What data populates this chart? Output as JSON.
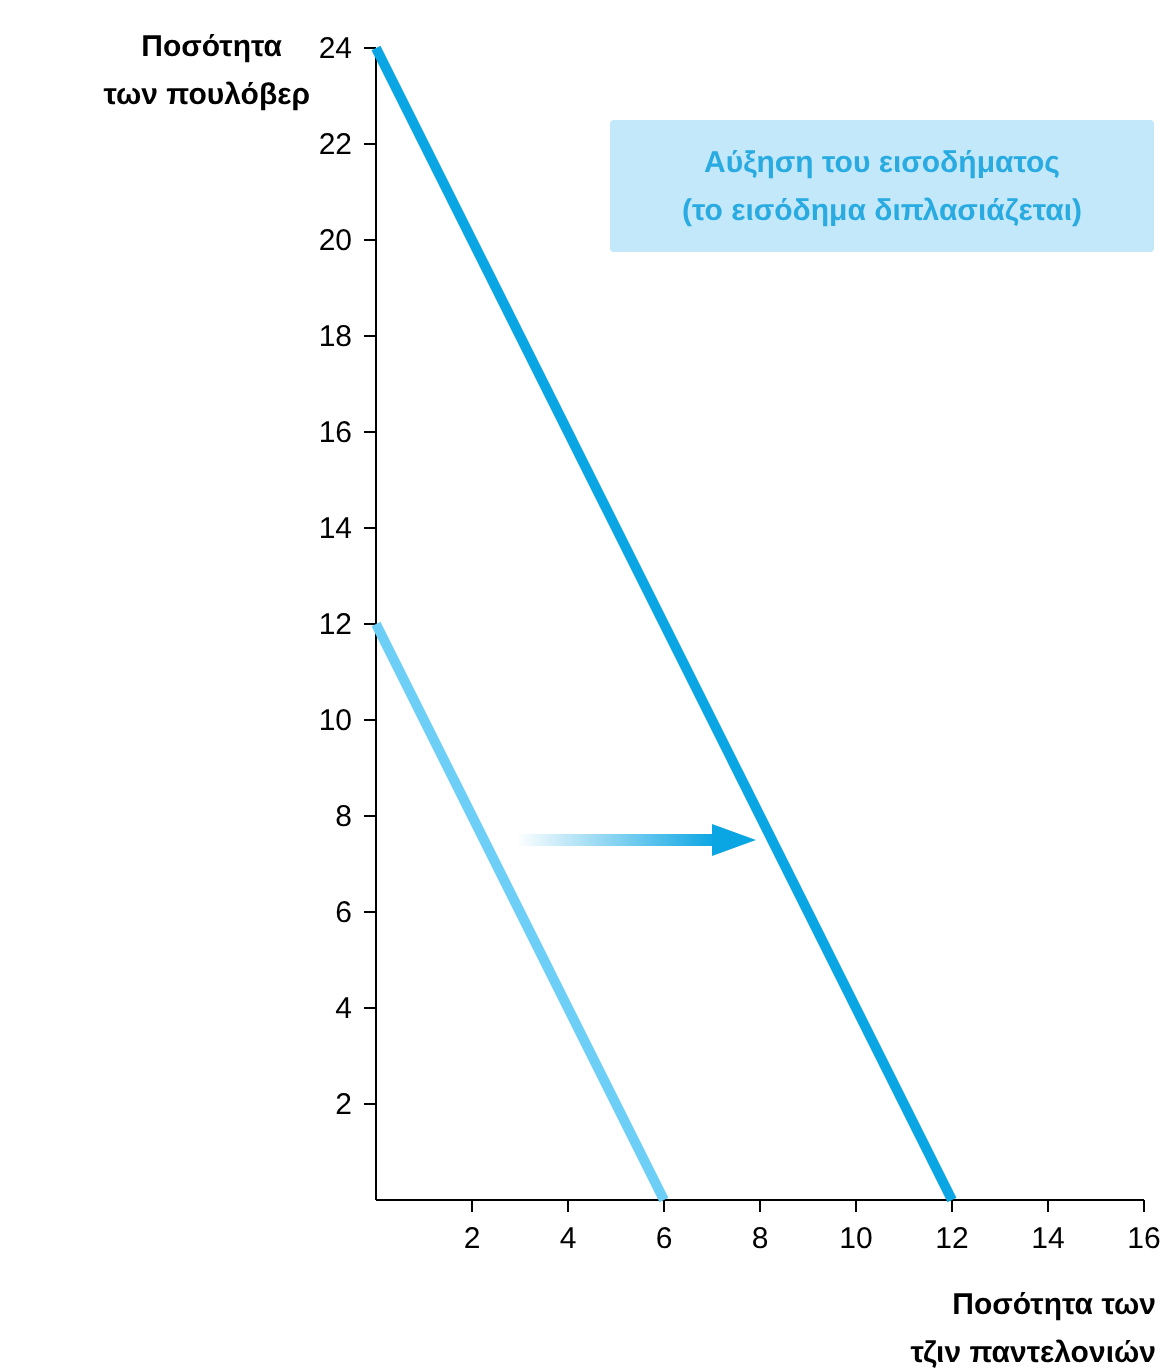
{
  "chart_data": {
    "type": "line",
    "xlabel": "Ποσότητα των\nτζιν παντελονιών",
    "ylabel": "Ποσότητα\nτων πουλόβερ",
    "series": [
      {
        "color": "#6dcff6",
        "x": [
          0,
          6
        ],
        "values": [
          12,
          0
        ]
      },
      {
        "color": "#0aa5e3",
        "x": [
          0,
          12
        ],
        "values": [
          24,
          0
        ]
      }
    ],
    "xlim": [
      0,
      16
    ],
    "xticks": [
      2,
      4,
      6,
      8,
      10,
      12,
      14,
      16
    ],
    "ylim": [
      0,
      24
    ],
    "yticks": [
      2,
      4,
      6,
      8,
      10,
      12,
      14,
      16,
      18,
      20,
      22,
      24
    ],
    "annotations": [
      "Αύξηση του εισοδήματος\n(το εισόδημα διπλασιάζεται)"
    ],
    "grid": false,
    "marker": "none",
    "line_style": "solid"
  }
}
